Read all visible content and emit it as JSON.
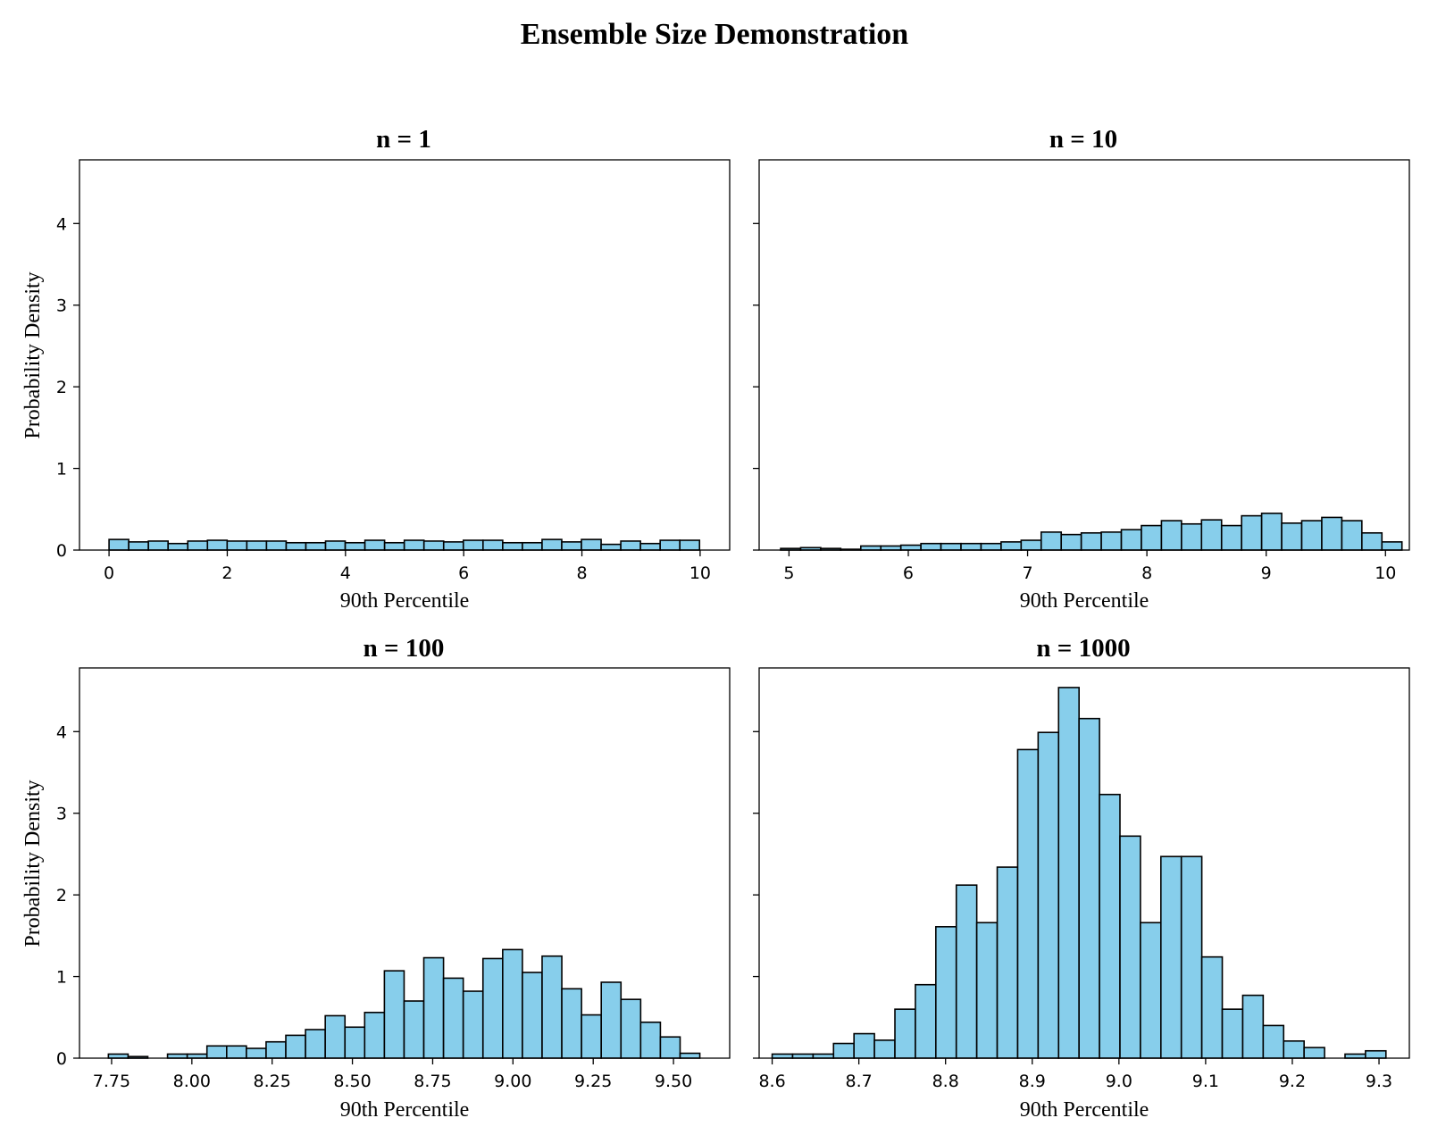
{
  "figure": {
    "title": "Ensemble Size Demonstration",
    "bar_color": "#87ceeb",
    "edge_color": "#000000"
  },
  "chart_data": [
    {
      "type": "bar",
      "title": "n = 1",
      "xlabel": "90th Percentile",
      "ylabel": "Probability Density",
      "xlim": [
        -0.5,
        10.5
      ],
      "ylim": [
        0,
        4.78
      ],
      "xticks": [
        0,
        2,
        4,
        6,
        8,
        10
      ],
      "xtick_labels": [
        "0",
        "2",
        "4",
        "6",
        "8",
        "10"
      ],
      "yticks": [
        0,
        1,
        2,
        3,
        4
      ],
      "ytick_labels": [
        "0",
        "1",
        "2",
        "3",
        "4"
      ],
      "show_ytick_labels": true,
      "bin_start": 0.0,
      "bin_width": 0.333,
      "values": [
        0.13,
        0.1,
        0.11,
        0.08,
        0.11,
        0.12,
        0.11,
        0.11,
        0.11,
        0.09,
        0.09,
        0.11,
        0.09,
        0.12,
        0.09,
        0.12,
        0.11,
        0.1,
        0.12,
        0.12,
        0.09,
        0.09,
        0.13,
        0.1,
        0.13,
        0.07,
        0.11,
        0.08,
        0.12,
        0.12
      ]
    },
    {
      "type": "bar",
      "title": "n = 10",
      "xlabel": "90th Percentile",
      "ylabel": "",
      "xlim": [
        4.75,
        10.2
      ],
      "ylim": [
        0,
        4.78
      ],
      "xticks": [
        5,
        6,
        7,
        8,
        9,
        10
      ],
      "xtick_labels": [
        "5",
        "6",
        "7",
        "8",
        "9",
        "10"
      ],
      "yticks": [
        0,
        1,
        2,
        3,
        4
      ],
      "ytick_labels": [
        "0",
        "1",
        "2",
        "3",
        "4"
      ],
      "show_ytick_labels": false,
      "bin_start": 4.93,
      "bin_width": 0.168,
      "values": [
        0.02,
        0.03,
        0.02,
        0.01,
        0.05,
        0.05,
        0.06,
        0.08,
        0.08,
        0.08,
        0.08,
        0.1,
        0.12,
        0.22,
        0.19,
        0.21,
        0.22,
        0.25,
        0.3,
        0.36,
        0.32,
        0.37,
        0.3,
        0.42,
        0.45,
        0.33,
        0.36,
        0.4,
        0.36,
        0.21,
        0.1
      ]
    },
    {
      "type": "bar",
      "title": "n = 100",
      "xlabel": "90th Percentile",
      "ylabel": "Probability Density",
      "xlim": [
        7.65,
        9.675
      ],
      "ylim": [
        0,
        4.78
      ],
      "xticks": [
        7.75,
        8.0,
        8.25,
        8.5,
        8.75,
        9.0,
        9.25,
        9.5
      ],
      "xtick_labels": [
        "7.75",
        "8.00",
        "8.25",
        "8.50",
        "8.75",
        "9.00",
        "9.25",
        "9.50"
      ],
      "yticks": [
        0,
        1,
        2,
        3,
        4
      ],
      "ytick_labels": [
        "0",
        "1",
        "2",
        "3",
        "4"
      ],
      "show_ytick_labels": true,
      "bin_start": 7.74,
      "bin_width": 0.0614,
      "values": [
        0.05,
        0.02,
        0.0,
        0.05,
        0.05,
        0.15,
        0.15,
        0.12,
        0.2,
        0.28,
        0.35,
        0.52,
        0.38,
        0.56,
        1.07,
        0.7,
        1.23,
        0.98,
        0.82,
        1.22,
        1.33,
        1.05,
        1.25,
        0.85,
        0.53,
        0.93,
        0.72,
        0.44,
        0.26,
        0.06
      ]
    },
    {
      "type": "bar",
      "title": "n = 1000",
      "xlabel": "90th Percentile",
      "ylabel": "",
      "xlim": [
        8.585,
        9.335
      ],
      "ylim": [
        0,
        4.78
      ],
      "xticks": [
        8.6,
        8.7,
        8.8,
        8.9,
        9.0,
        9.1,
        9.2,
        9.3
      ],
      "xtick_labels": [
        "8.6",
        "8.7",
        "8.8",
        "8.9",
        "9.0",
        "9.1",
        "9.2",
        "9.3"
      ],
      "yticks": [
        0,
        1,
        2,
        3,
        4
      ],
      "ytick_labels": [
        "0",
        "1",
        "2",
        "3",
        "4"
      ],
      "show_ytick_labels": false,
      "bin_start": 8.6,
      "bin_width": 0.0236,
      "values": [
        0.05,
        0.05,
        0.05,
        0.18,
        0.3,
        0.22,
        0.6,
        0.9,
        1.61,
        2.12,
        1.66,
        2.34,
        3.78,
        3.99,
        4.54,
        4.16,
        3.23,
        2.72,
        1.66,
        2.47,
        2.47,
        1.24,
        0.6,
        0.77,
        0.4,
        0.21,
        0.13,
        0.0,
        0.05,
        0.09
      ]
    }
  ]
}
